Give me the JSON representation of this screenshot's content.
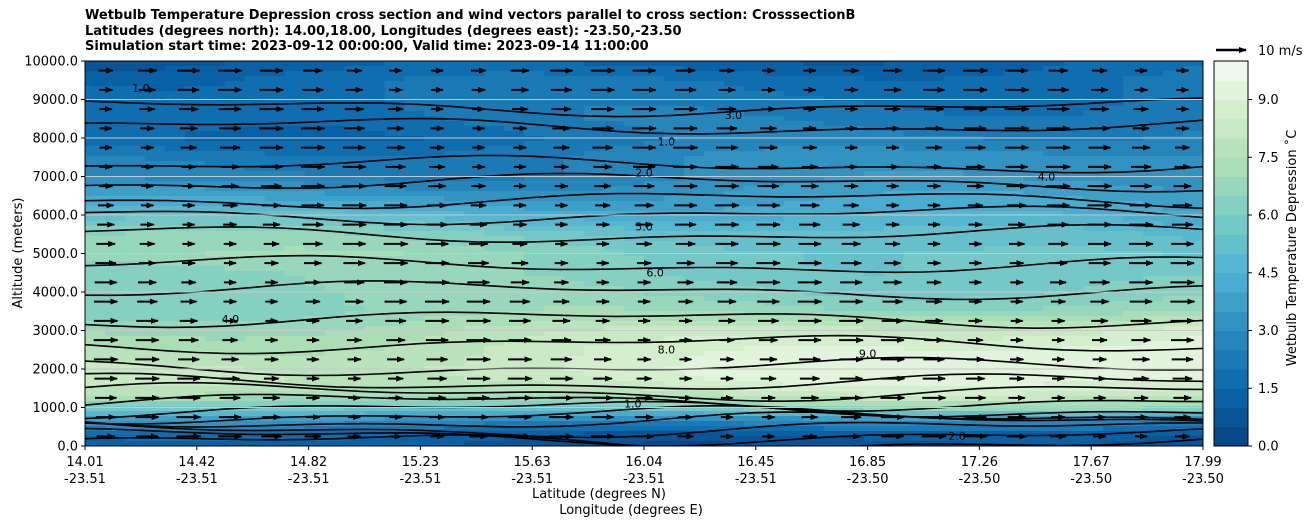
{
  "title": {
    "line1": "Wetbulb Temperature Depression cross section and wind vectors parallel to cross section: CrosssectionB",
    "line2": "Latitudes (degrees north): 14.00,18.00, Longitudes (degrees east): -23.50,-23.50",
    "line3": "Simulation start time: 2023-09-12 00:00:00, Valid time: 2023-09-14 11:00:00"
  },
  "chart_data": {
    "type": "heatmap",
    "subtype": "filled contour cross-section with wind vectors",
    "ylabel": "Altitude (meters)",
    "xlabel_line1": "Latitude (degrees N)",
    "xlabel_line2": "Longitude (degrees E)",
    "ylim": [
      0,
      10000
    ],
    "yticks": [
      "0.0",
      "1000.0",
      "2000.0",
      "3000.0",
      "4000.0",
      "5000.0",
      "6000.0",
      "7000.0",
      "8000.0",
      "9000.0",
      "10000.0"
    ],
    "xticks_lat": [
      "14.01",
      "14.42",
      "14.82",
      "15.23",
      "15.63",
      "16.04",
      "16.45",
      "16.85",
      "17.26",
      "17.67",
      "17.99"
    ],
    "xticks_lon": [
      "-23.51",
      "-23.51",
      "-23.51",
      "-23.51",
      "-23.51",
      "-23.51",
      "-23.51",
      "-23.50",
      "-23.50",
      "-23.50",
      "-23.50"
    ],
    "colorbar": {
      "label": "Wetbulb Temperature Depression ˚C",
      "ticks": [
        "0.0",
        "1.5",
        "3.0",
        "4.5",
        "6.0",
        "7.5",
        "9.0"
      ],
      "range": [
        0,
        10
      ],
      "colormap": "GnBu_r"
    },
    "quiver_key": {
      "label": "10 m/s"
    },
    "contour_labels": [
      "1.0",
      "2.0",
      "3.0",
      "4.0",
      "5.0",
      "6.0",
      "8.0",
      "9.0"
    ],
    "grid": "horizontal lines at y ticks",
    "profile": {
      "altitude_m": [
        0,
        300,
        700,
        1000,
        1300,
        1700,
        2000,
        2500,
        3000,
        3500,
        4000,
        4500,
        5000,
        5500,
        6000,
        6500,
        7000,
        7500,
        8000,
        8500,
        9000,
        9500,
        10000
      ],
      "depression_west_C": [
        1.0,
        1.5,
        3.5,
        5.5,
        7.0,
        8.0,
        8.0,
        7.5,
        7.0,
        6.5,
        6.5,
        6.5,
        7.0,
        6.5,
        5.0,
        3.5,
        2.5,
        2.2,
        1.5,
        2.0,
        2.0,
        1.8,
        1.0
      ],
      "depression_east_C": [
        0.5,
        0.8,
        3.0,
        7.0,
        8.5,
        9.5,
        9.8,
        9.8,
        9.0,
        7.0,
        6.0,
        5.5,
        5.0,
        4.5,
        4.0,
        3.8,
        3.5,
        3.5,
        3.0,
        2.5,
        2.2,
        2.0,
        1.5
      ]
    }
  }
}
